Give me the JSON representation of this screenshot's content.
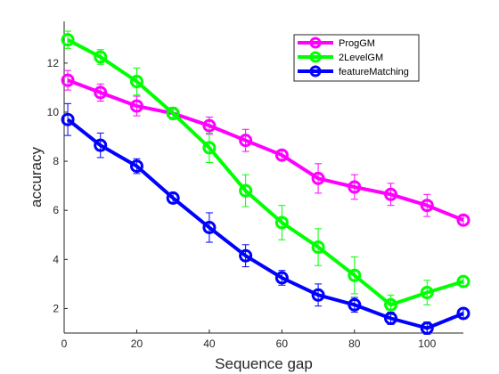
{
  "chart_data": {
    "type": "line",
    "xlabel": "Sequence gap",
    "ylabel": "accuracy",
    "xlim": [
      0,
      110
    ],
    "ylim": [
      1,
      13.7
    ],
    "x_ticks": [
      0,
      20,
      40,
      60,
      80,
      100
    ],
    "y_ticks": [
      2,
      4,
      6,
      8,
      10,
      12
    ],
    "x_tick_labels": [
      "0",
      "20",
      "40",
      "60",
      "80",
      "100"
    ],
    "y_tick_labels": [
      "2",
      "4",
      "6",
      "8",
      "10",
      "12"
    ],
    "grid": false,
    "legend_position": "top-right",
    "x": [
      1,
      10,
      20,
      30,
      40,
      50,
      60,
      70,
      80,
      90,
      100,
      110
    ],
    "series": [
      {
        "name": "ProgGM",
        "color": "#ff00ff",
        "values": [
          11.3,
          10.8,
          10.25,
          9.95,
          9.45,
          8.85,
          8.25,
          7.3,
          6.95,
          6.65,
          6.2,
          5.6
        ],
        "errors": [
          0.4,
          0.35,
          0.4,
          0.2,
          0.35,
          0.45,
          0.2,
          0.6,
          0.5,
          0.45,
          0.45,
          0.2
        ]
      },
      {
        "name": "2LevelGM",
        "color": "#00ff00",
        "values": [
          12.95,
          12.25,
          11.25,
          9.95,
          8.55,
          6.8,
          5.5,
          4.5,
          3.35,
          2.15,
          2.65,
          3.1
        ],
        "errors": [
          0.35,
          0.3,
          0.55,
          0.25,
          0.6,
          0.65,
          0.7,
          0.75,
          0.75,
          0.4,
          0.5,
          0.2
        ]
      },
      {
        "name": "featureMatching",
        "color": "#0000ff",
        "values": [
          9.7,
          8.65,
          7.8,
          6.5,
          5.3,
          4.15,
          3.25,
          2.55,
          2.15,
          1.6,
          1.2,
          1.8
        ],
        "errors": [
          0.65,
          0.5,
          0.3,
          0.2,
          0.6,
          0.45,
          0.3,
          0.45,
          0.3,
          0.25,
          0.25,
          0.2
        ]
      }
    ]
  }
}
